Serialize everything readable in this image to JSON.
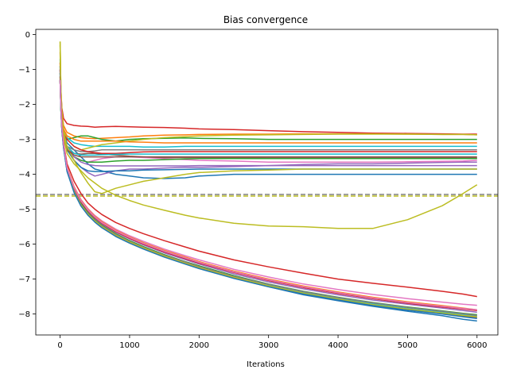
{
  "chart_data": {
    "type": "line",
    "title": "Bias convergence",
    "xlabel": "Iterations",
    "ylabel": "",
    "xlim": [
      -350,
      6300
    ],
    "ylim": [
      -8.6,
      0.15
    ],
    "xticks": [
      0,
      1000,
      2000,
      3000,
      4000,
      5000,
      6000
    ],
    "yticks": [
      0,
      -1,
      -2,
      -3,
      -4,
      -5,
      -6,
      -7,
      -8
    ],
    "xtick_labels": [
      "0",
      "1000",
      "2000",
      "3000",
      "4000",
      "5000",
      "6000"
    ],
    "ytick_labels": [
      "0",
      "−1",
      "−2",
      "−3",
      "−4",
      "−5",
      "−6",
      "−7",
      "−8"
    ],
    "grid": false,
    "legend": "none",
    "reference_line": {
      "y": -4.6,
      "style": "dashed",
      "colors": [
        "#7f7f7f",
        "#bcbd22"
      ]
    },
    "x": [
      0,
      10,
      25,
      50,
      100,
      200,
      300,
      400,
      500,
      600,
      800,
      1000,
      1200,
      1500,
      1800,
      2000,
      2500,
      3000,
      3500,
      4000,
      4500,
      5000,
      5500,
      5800,
      6000
    ],
    "series": [
      {
        "color": "#d62728",
        "values": [
          -0.8,
          -1.6,
          -2.1,
          -2.4,
          -2.55,
          -2.6,
          -2.62,
          -2.63,
          -2.65,
          -2.64,
          -2.63,
          -2.64,
          -2.65,
          -2.66,
          -2.68,
          -2.7,
          -2.72,
          -2.75,
          -2.78,
          -2.8,
          -2.82,
          -2.83,
          -2.84,
          -2.85,
          -2.85
        ]
      },
      {
        "color": "#ff7f0e",
        "values": [
          -0.5,
          -1.5,
          -2.2,
          -2.6,
          -2.8,
          -2.9,
          -2.95,
          -2.97,
          -2.98,
          -2.97,
          -2.95,
          -2.93,
          -2.9,
          -2.88,
          -2.87,
          -2.86,
          -2.85,
          -2.85,
          -2.84,
          -2.84,
          -2.84,
          -2.85,
          -2.86,
          -2.86,
          -2.87
        ]
      },
      {
        "color": "#2ca02c",
        "values": [
          -1.0,
          -1.9,
          -2.5,
          -2.9,
          -3.0,
          -2.95,
          -2.9,
          -2.9,
          -2.95,
          -3.0,
          -3.05,
          -3.0,
          -2.98,
          -2.97,
          -2.96,
          -2.97,
          -2.98,
          -3.0,
          -3.0,
          -3.0,
          -3.0,
          -3.0,
          -3.0,
          -3.0,
          -3.0
        ]
      },
      {
        "color": "#1f77b4",
        "values": [
          -0.9,
          -1.8,
          -2.4,
          -2.8,
          -3.1,
          -3.3,
          -3.5,
          -3.7,
          -3.85,
          -3.9,
          -4.0,
          -4.05,
          -4.1,
          -4.12,
          -4.1,
          -4.05,
          -4.0,
          -4.0,
          -4.0,
          -4.0,
          -4.0,
          -4.0,
          -4.0,
          -4.0,
          -4.0
        ]
      },
      {
        "color": "#9467bd",
        "values": [
          -1.1,
          -2.0,
          -2.6,
          -3.0,
          -3.3,
          -3.6,
          -3.8,
          -3.95,
          -4.05,
          -4.0,
          -3.9,
          -3.85,
          -3.85,
          -3.82,
          -3.8,
          -3.8,
          -3.78,
          -3.75,
          -3.72,
          -3.7,
          -3.7,
          -3.68,
          -3.66,
          -3.65,
          -3.65
        ]
      },
      {
        "color": "#17becf",
        "values": [
          -0.7,
          -1.7,
          -2.3,
          -2.7,
          -2.95,
          -3.1,
          -3.15,
          -3.18,
          -3.2,
          -3.2,
          -3.2,
          -3.2,
          -3.22,
          -3.22,
          -3.2,
          -3.2,
          -3.2,
          -3.2,
          -3.2,
          -3.2,
          -3.2,
          -3.2,
          -3.2,
          -3.2,
          -3.2
        ]
      },
      {
        "color": "#e377c2",
        "values": [
          -1.0,
          -1.9,
          -2.5,
          -2.9,
          -3.2,
          -3.5,
          -3.6,
          -3.65,
          -3.6,
          -3.55,
          -3.5,
          -3.5,
          -3.52,
          -3.55,
          -3.58,
          -3.6,
          -3.62,
          -3.65,
          -3.65,
          -3.65,
          -3.65,
          -3.64,
          -3.63,
          -3.62,
          -3.6
        ]
      },
      {
        "color": "#bcbd22",
        "values": [
          -0.2,
          -1.5,
          -2.2,
          -2.7,
          -3.0,
          -3.2,
          -3.3,
          -3.25,
          -3.2,
          -3.15,
          -3.1,
          -3.05,
          -3.0,
          -2.95,
          -2.92,
          -2.9,
          -2.88,
          -2.87,
          -2.86,
          -2.85,
          -2.85,
          -2.85,
          -2.86,
          -2.86,
          -2.87
        ]
      },
      {
        "color": "#8c564b",
        "values": [
          -1.2,
          -2.0,
          -2.6,
          -3.0,
          -3.3,
          -3.4,
          -3.42,
          -3.4,
          -3.4,
          -3.42,
          -3.45,
          -3.48,
          -3.5,
          -3.52,
          -3.52,
          -3.52,
          -3.52,
          -3.53,
          -3.53,
          -3.53,
          -3.53,
          -3.53,
          -3.53,
          -3.53,
          -3.53
        ]
      },
      {
        "color": "#7f7f7f",
        "values": [
          -1.0,
          -1.9,
          -2.5,
          -2.9,
          -3.2,
          -3.3,
          -3.35,
          -3.35,
          -3.33,
          -3.3,
          -3.3,
          -3.3,
          -3.3,
          -3.3,
          -3.3,
          -3.3,
          -3.3,
          -3.3,
          -3.3,
          -3.3,
          -3.3,
          -3.3,
          -3.3,
          -3.3,
          -3.3
        ]
      },
      {
        "color": "#1f77b4",
        "values": [
          -0.9,
          -1.8,
          -2.4,
          -2.9,
          -3.3,
          -3.6,
          -3.8,
          -3.9,
          -3.92,
          -3.92,
          -3.9,
          -3.9,
          -3.88,
          -3.87,
          -3.86,
          -3.85,
          -3.85,
          -3.85,
          -3.85,
          -3.85,
          -3.85,
          -3.85,
          -3.85,
          -3.85,
          -3.85
        ]
      },
      {
        "color": "#2ca02c",
        "values": [
          -1.1,
          -2.0,
          -2.6,
          -3.0,
          -3.3,
          -3.5,
          -3.6,
          -3.65,
          -3.65,
          -3.65,
          -3.62,
          -3.6,
          -3.6,
          -3.58,
          -3.56,
          -3.55,
          -3.55,
          -3.55,
          -3.55,
          -3.55,
          -3.55,
          -3.55,
          -3.55,
          -3.55,
          -3.55
        ]
      },
      {
        "color": "#ff7f0e",
        "values": [
          -0.8,
          -1.7,
          -2.3,
          -2.7,
          -2.9,
          -3.0,
          -3.05,
          -3.05,
          -3.05,
          -3.05,
          -3.05,
          -3.07,
          -3.08,
          -3.1,
          -3.1,
          -3.1,
          -3.1,
          -3.1,
          -3.1,
          -3.1,
          -3.1,
          -3.1,
          -3.1,
          -3.1,
          -3.1
        ]
      },
      {
        "color": "#d62728",
        "values": [
          -1.0,
          -1.9,
          -2.5,
          -2.85,
          -3.0,
          -3.2,
          -3.3,
          -3.35,
          -3.38,
          -3.4,
          -3.4,
          -3.38,
          -3.36,
          -3.35,
          -3.35,
          -3.35,
          -3.35,
          -3.35,
          -3.35,
          -3.35,
          -3.35,
          -3.35,
          -3.35,
          -3.35,
          -3.35
        ]
      },
      {
        "color": "#17becf",
        "values": [
          -1.1,
          -2.0,
          -2.6,
          -3.0,
          -3.2,
          -3.4,
          -3.45,
          -3.45,
          -3.45,
          -3.44,
          -3.43,
          -3.42,
          -3.42,
          -3.42,
          -3.42,
          -3.42,
          -3.42,
          -3.42,
          -3.42,
          -3.42,
          -3.42,
          -3.42,
          -3.42,
          -3.42,
          -3.42
        ]
      },
      {
        "color": "#9467bd",
        "values": [
          -1.0,
          -1.9,
          -2.5,
          -2.9,
          -3.25,
          -3.5,
          -3.65,
          -3.72,
          -3.75,
          -3.76,
          -3.76,
          -3.76,
          -3.76,
          -3.76,
          -3.76,
          -3.75,
          -3.75,
          -3.75,
          -3.75,
          -3.75,
          -3.75,
          -3.75,
          -3.75,
          -3.75,
          -3.75
        ]
      },
      {
        "color": "#bcbd22",
        "values": [
          -0.3,
          -1.6,
          -2.3,
          -2.8,
          -3.2,
          -3.6,
          -3.95,
          -4.25,
          -4.5,
          -4.55,
          -4.4,
          -4.3,
          -4.2,
          -4.1,
          -4.0,
          -3.95,
          -3.9,
          -3.88,
          -3.85,
          -3.85,
          -3.85,
          -3.85,
          -3.85,
          -3.85,
          -3.85
        ]
      },
      {
        "color": "#8c564b",
        "values": [
          -1.2,
          -2.0,
          -2.6,
          -3.0,
          -3.3,
          -3.45,
          -3.5,
          -3.5,
          -3.5,
          -3.5,
          -3.5,
          -3.5,
          -3.5,
          -3.5,
          -3.5,
          -3.5,
          -3.5,
          -3.5,
          -3.5,
          -3.5,
          -3.5,
          -3.5,
          -3.5,
          -3.5,
          -3.5
        ]
      },
      {
        "color": "#bcbd22",
        "values": [
          -0.2,
          -1.5,
          -2.3,
          -2.9,
          -3.4,
          -3.7,
          -3.9,
          -4.1,
          -4.25,
          -4.4,
          -4.6,
          -4.75,
          -4.88,
          -5.03,
          -5.17,
          -5.25,
          -5.4,
          -5.48,
          -5.5,
          -5.55,
          -5.55,
          -5.3,
          -4.9,
          -4.55,
          -4.3
        ]
      },
      {
        "color": "#d62728",
        "values": [
          -1.3,
          -2.0,
          -2.6,
          -3.1,
          -3.7,
          -4.2,
          -4.55,
          -4.82,
          -5.0,
          -5.15,
          -5.38,
          -5.55,
          -5.7,
          -5.9,
          -6.08,
          -6.2,
          -6.45,
          -6.65,
          -6.83,
          -7.0,
          -7.12,
          -7.23,
          -7.35,
          -7.43,
          -7.5
        ]
      },
      {
        "color": "#1f77b4",
        "values": [
          -1.3,
          -2.1,
          -2.7,
          -3.2,
          -3.9,
          -4.5,
          -4.9,
          -5.15,
          -5.35,
          -5.5,
          -5.75,
          -5.95,
          -6.12,
          -6.35,
          -6.55,
          -6.68,
          -6.98,
          -7.22,
          -7.45,
          -7.62,
          -7.78,
          -7.92,
          -8.05,
          -8.15,
          -8.2
        ]
      },
      {
        "color": "#e377c2",
        "values": [
          -1.3,
          -2.0,
          -2.65,
          -3.15,
          -3.8,
          -4.35,
          -4.72,
          -4.98,
          -5.18,
          -5.33,
          -5.57,
          -5.76,
          -5.92,
          -6.14,
          -6.33,
          -6.45,
          -6.72,
          -6.94,
          -7.14,
          -7.3,
          -7.44,
          -7.56,
          -7.66,
          -7.72,
          -7.75
        ]
      },
      {
        "color": "#9467bd",
        "values": [
          -1.3,
          -2.05,
          -2.68,
          -3.18,
          -3.85,
          -4.42,
          -4.8,
          -5.06,
          -5.26,
          -5.42,
          -5.66,
          -5.85,
          -6.02,
          -6.25,
          -6.44,
          -6.57,
          -6.85,
          -7.08,
          -7.28,
          -7.45,
          -7.6,
          -7.72,
          -7.83,
          -7.9,
          -7.95
        ]
      },
      {
        "color": "#2ca02c",
        "values": [
          -1.3,
          -2.05,
          -2.68,
          -3.18,
          -3.85,
          -4.44,
          -4.83,
          -5.1,
          -5.3,
          -5.46,
          -5.7,
          -5.9,
          -6.07,
          -6.3,
          -6.5,
          -6.62,
          -6.9,
          -7.14,
          -7.35,
          -7.52,
          -7.67,
          -7.8,
          -7.91,
          -7.98,
          -8.02
        ]
      },
      {
        "color": "#ff7f0e",
        "values": [
          -1.3,
          -2.0,
          -2.6,
          -3.12,
          -3.8,
          -4.36,
          -4.74,
          -5.0,
          -5.2,
          -5.36,
          -5.6,
          -5.79,
          -5.96,
          -6.18,
          -6.37,
          -6.5,
          -6.77,
          -7.0,
          -7.2,
          -7.37,
          -7.52,
          -7.65,
          -7.76,
          -7.83,
          -7.88
        ]
      },
      {
        "color": "#17becf",
        "values": [
          -1.3,
          -2.1,
          -2.7,
          -3.2,
          -3.88,
          -4.48,
          -4.87,
          -5.13,
          -5.33,
          -5.49,
          -5.74,
          -5.93,
          -6.1,
          -6.33,
          -6.52,
          -6.65,
          -6.93,
          -7.17,
          -7.38,
          -7.55,
          -7.71,
          -7.84,
          -7.95,
          -8.02,
          -8.06
        ]
      },
      {
        "color": "#7f7f7f",
        "values": [
          -1.3,
          -2.08,
          -2.7,
          -3.2,
          -3.87,
          -4.47,
          -4.86,
          -5.12,
          -5.32,
          -5.48,
          -5.72,
          -5.92,
          -6.09,
          -6.32,
          -6.51,
          -6.64,
          -6.92,
          -7.15,
          -7.36,
          -7.53,
          -7.68,
          -7.81,
          -7.92,
          -7.99,
          -8.04
        ]
      },
      {
        "color": "#8c564b",
        "values": [
          -1.3,
          -2.1,
          -2.72,
          -3.22,
          -3.9,
          -4.5,
          -4.89,
          -5.16,
          -5.36,
          -5.52,
          -5.77,
          -5.96,
          -6.13,
          -6.36,
          -6.56,
          -6.69,
          -6.97,
          -7.21,
          -7.42,
          -7.59,
          -7.75,
          -7.88,
          -7.99,
          -8.06,
          -8.1
        ]
      },
      {
        "color": "#d62728",
        "values": [
          -1.3,
          -2.05,
          -2.66,
          -3.16,
          -3.83,
          -4.4,
          -4.78,
          -5.04,
          -5.24,
          -5.4,
          -5.64,
          -5.83,
          -6.0,
          -6.22,
          -6.41,
          -6.54,
          -6.81,
          -7.04,
          -7.24,
          -7.41,
          -7.56,
          -7.69,
          -7.8,
          -7.86,
          -7.9
        ]
      },
      {
        "color": "#bcbd22",
        "values": [
          -1.3,
          -2.1,
          -2.71,
          -3.21,
          -3.89,
          -4.49,
          -4.88,
          -5.14,
          -5.34,
          -5.5,
          -5.75,
          -5.94,
          -6.11,
          -6.34,
          -6.54,
          -6.67,
          -6.95,
          -7.19,
          -7.4,
          -7.57,
          -7.73,
          -7.86,
          -7.97,
          -8.04,
          -8.08
        ]
      },
      {
        "color": "#1f77b4",
        "values": [
          -1.3,
          -2.12,
          -2.74,
          -3.24,
          -3.92,
          -4.52,
          -4.91,
          -5.17,
          -5.37,
          -5.53,
          -5.78,
          -5.97,
          -6.14,
          -6.37,
          -6.57,
          -6.7,
          -6.98,
          -7.22,
          -7.43,
          -7.6,
          -7.76,
          -7.89,
          -8.0,
          -8.08,
          -8.13
        ]
      },
      {
        "color": "#e377c2",
        "values": [
          -1.3,
          -2.03,
          -2.63,
          -3.14,
          -3.82,
          -4.38,
          -4.76,
          -5.02,
          -5.22,
          -5.38,
          -5.62,
          -5.81,
          -5.98,
          -6.2,
          -6.39,
          -6.52,
          -6.79,
          -7.02,
          -7.22,
          -7.39,
          -7.54,
          -7.67,
          -7.78,
          -7.84,
          -7.88
        ]
      }
    ]
  }
}
